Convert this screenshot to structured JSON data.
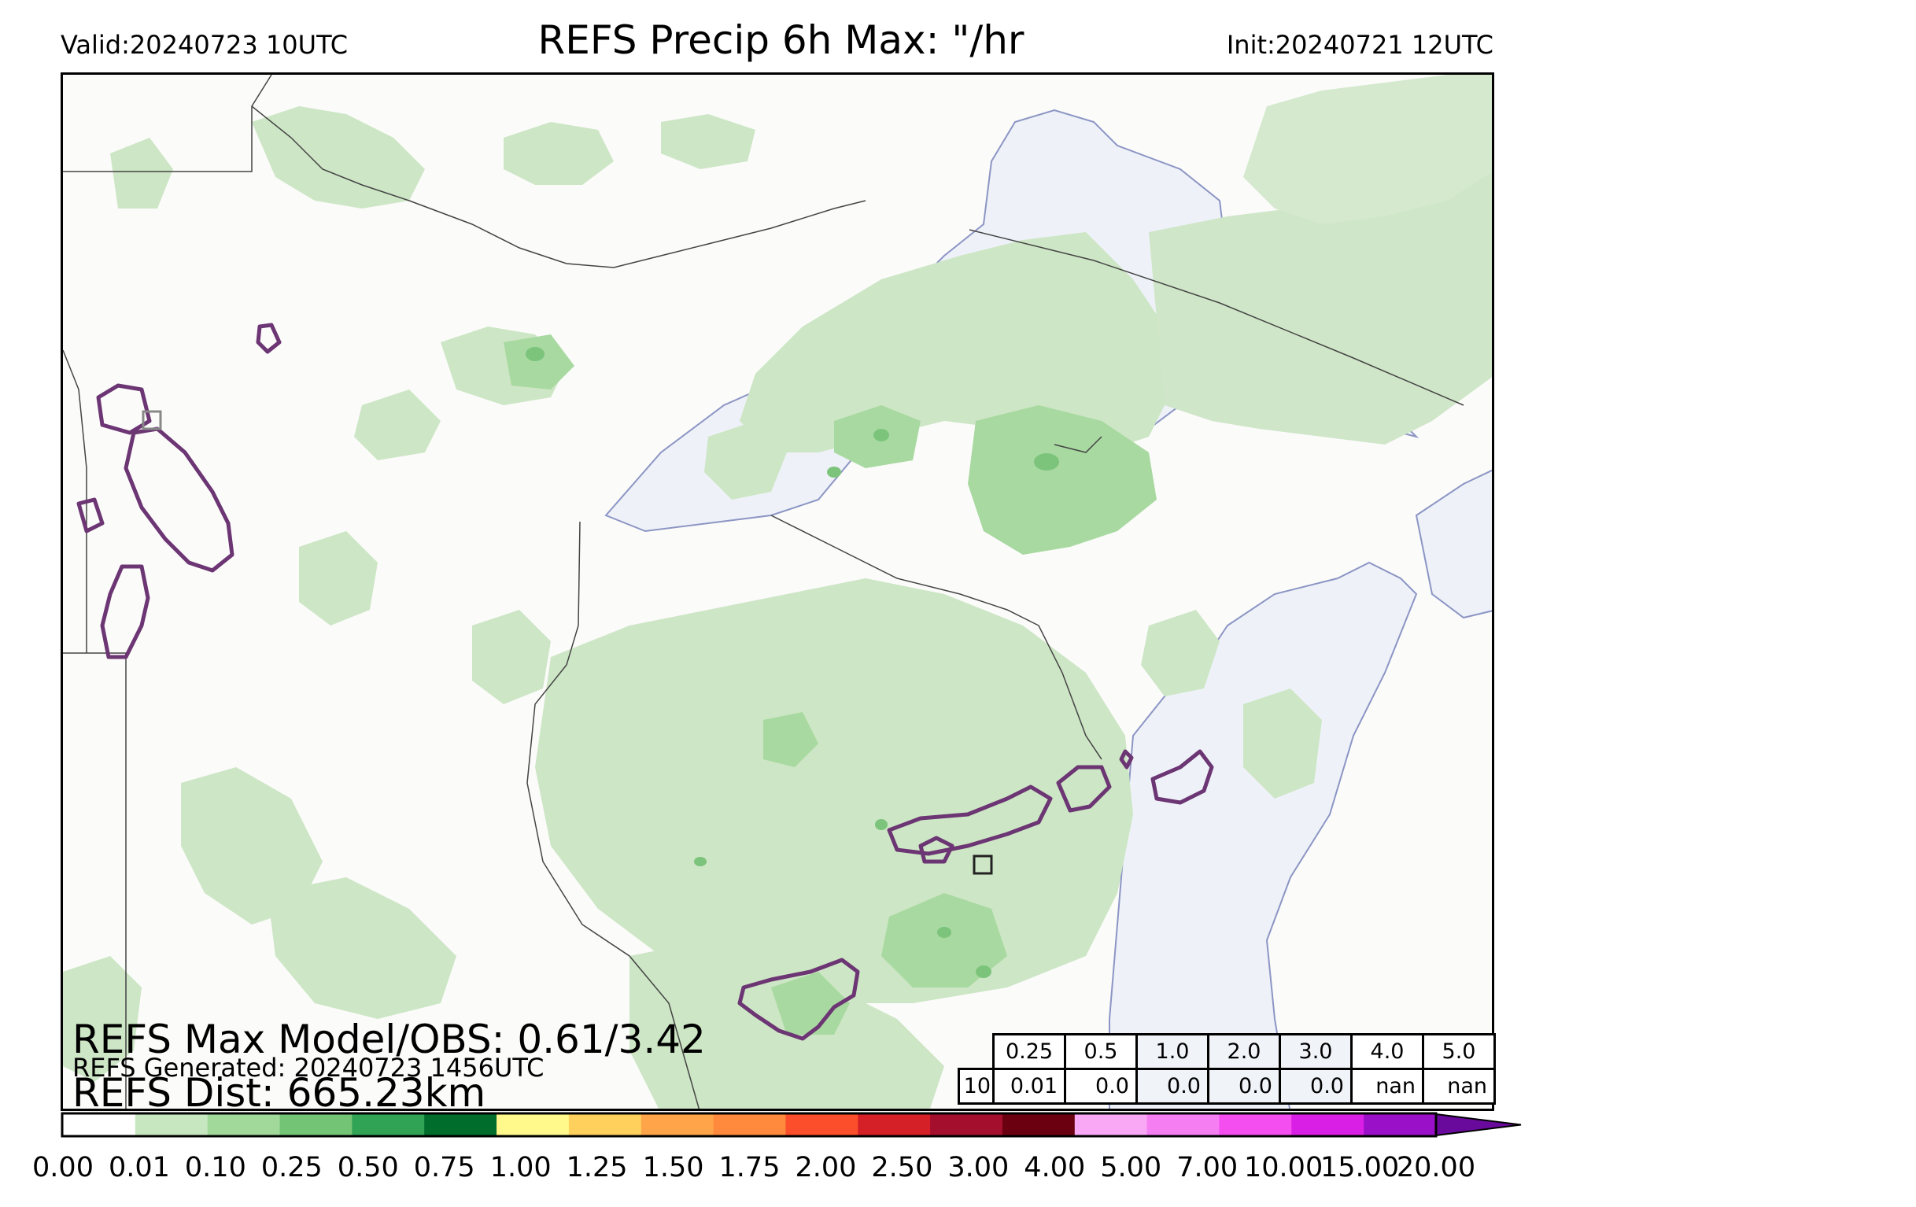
{
  "header": {
    "valid": "Valid:20240723 10UTC",
    "title": "REFS Precip 6h Max: \"/hr",
    "init": "Init:20240721 12UTC"
  },
  "stats": {
    "max_model_obs": "REFS Max Model/OBS: 0.61/3.42",
    "generated": "REFS Generated: 20240723 1456UTC",
    "dist": "REFS Dist: 665.23km"
  },
  "threshold_table": {
    "header": [
      "0.25",
      "0.5",
      "1.0",
      "2.0",
      "3.0",
      "4.0",
      "5.0"
    ],
    "row_label": "10",
    "values": [
      "0.01",
      "0.0",
      "0.0",
      "0.0",
      "0.0",
      "nan",
      "nan"
    ],
    "header_colors": [
      "#ffffff",
      "#ffffff",
      "#f0f3f8",
      "#f0f3f8",
      "#f0f3f8",
      "#ffffff",
      "#ffffff"
    ],
    "value_colors": [
      "#ffffff",
      "#ffffff",
      "#f0f3f8",
      "#f0f3f8",
      "#f0f3f8",
      "#ffffff",
      "#ffffff"
    ]
  },
  "colorbar": {
    "ticks": [
      "0.00",
      "0.01",
      "0.10",
      "0.25",
      "0.50",
      "0.75",
      "1.00",
      "1.25",
      "1.50",
      "1.75",
      "2.00",
      "2.50",
      "3.00",
      "4.00",
      "5.00",
      "7.00",
      "10.00",
      "15.00",
      "20.00"
    ],
    "colors": [
      "#ffffff",
      "#c7e7c0",
      "#a1d99b",
      "#74c476",
      "#31a354",
      "#006d2c",
      "#fff88a",
      "#ffd15c",
      "#ffa449",
      "#ff8a3d",
      "#fc4e2a",
      "#d62027",
      "#a50f2e",
      "#6b0010",
      "#f9a8f5",
      "#f57ef3",
      "#f44df0",
      "#d91fe5",
      "#9a10c9"
    ],
    "extend_color": "#6a0a9c"
  },
  "map_colors": {
    "light_precip": "#cde6c5",
    "mid_precip": "#a8d9a0",
    "heavy_precip": "#7cc47c",
    "lake": "#eef2f8",
    "obs_contour": "#6c3573"
  }
}
